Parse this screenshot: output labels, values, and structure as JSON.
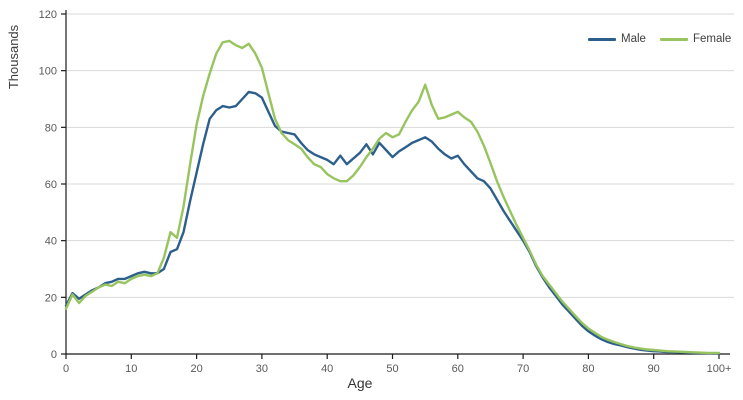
{
  "colors": {
    "grid": "#d9d9d9",
    "axis": "#1a1a1a",
    "tick_text": "#595959",
    "label_text": "#3f3f3f",
    "male_line": "#2d5f8d",
    "female_line": "#97c45e"
  },
  "chart_data": {
    "type": "line",
    "title": "",
    "xlabel": "Age",
    "ylabel": "Thousands",
    "ylim": [
      0,
      120
    ],
    "xlim": [
      0,
      100
    ],
    "grid": "horizontal",
    "legend_position": "top-right",
    "yticks": [
      0,
      20,
      40,
      60,
      80,
      100,
      120
    ],
    "xticks": [
      0,
      10,
      20,
      30,
      40,
      50,
      60,
      70,
      80,
      90,
      100
    ],
    "xtick_labels": [
      "0",
      "10",
      "20",
      "30",
      "40",
      "50",
      "60",
      "70",
      "80",
      "90",
      "100+"
    ],
    "x": [
      0,
      1,
      2,
      3,
      4,
      5,
      6,
      7,
      8,
      9,
      10,
      11,
      12,
      13,
      14,
      15,
      16,
      17,
      18,
      19,
      20,
      21,
      22,
      23,
      24,
      25,
      26,
      27,
      28,
      29,
      30,
      31,
      32,
      33,
      34,
      35,
      36,
      37,
      38,
      39,
      40,
      41,
      42,
      43,
      44,
      45,
      46,
      47,
      48,
      49,
      50,
      51,
      52,
      53,
      54,
      55,
      56,
      57,
      58,
      59,
      60,
      61,
      62,
      63,
      64,
      65,
      66,
      67,
      68,
      69,
      70,
      71,
      72,
      73,
      74,
      75,
      76,
      77,
      78,
      79,
      80,
      81,
      82,
      83,
      84,
      85,
      86,
      87,
      88,
      89,
      90,
      91,
      92,
      93,
      94,
      95,
      96,
      97,
      98,
      99,
      100
    ],
    "series": [
      {
        "name": "Male",
        "color": "#2d5f8d",
        "values": [
          17,
          21.5,
          19.5,
          21,
          22.5,
          23.5,
          25,
          25.5,
          26.5,
          26.5,
          27.5,
          28.5,
          29,
          28.5,
          28.5,
          30,
          36,
          37,
          43,
          54,
          64,
          74,
          83,
          86,
          87.5,
          87,
          87.5,
          90,
          92.5,
          92,
          90.5,
          85.5,
          80.5,
          78.5,
          78,
          77.5,
          74.5,
          72,
          70.5,
          69.5,
          68.5,
          67,
          70,
          67,
          69,
          71,
          74,
          70.5,
          74.5,
          72,
          69.5,
          71.5,
          73,
          74.5,
          75.5,
          76.5,
          75,
          72.5,
          70.5,
          69,
          70,
          67,
          64.5,
          62,
          61,
          58.5,
          54.5,
          50.5,
          47,
          43.5,
          40,
          36,
          31,
          27,
          23.5,
          20.5,
          17.5,
          15,
          12.5,
          10,
          8,
          6.5,
          5.2,
          4.2,
          3.5,
          3,
          2.4,
          1.9,
          1.5,
          1.2,
          1,
          0.9,
          0.7,
          0.7,
          0.6,
          0.5,
          0.4,
          0.3,
          0.3,
          0.2,
          0.2
        ]
      },
      {
        "name": "Female",
        "color": "#97c45e",
        "values": [
          16,
          21,
          18,
          20.5,
          22,
          23.5,
          24.5,
          24,
          25.5,
          25,
          26.5,
          27.5,
          28,
          27.5,
          28.5,
          34,
          43,
          41,
          52,
          67,
          81,
          91,
          99,
          106,
          110,
          110.5,
          109,
          108,
          109.5,
          106,
          101,
          92,
          83,
          78,
          75.5,
          74,
          72.5,
          69.5,
          67,
          66,
          63.5,
          62,
          61,
          61,
          63,
          66,
          69.5,
          72.5,
          76,
          78,
          76.5,
          77.5,
          82,
          86,
          89,
          95,
          88,
          83,
          83.5,
          84.5,
          85.5,
          83.5,
          82,
          78.5,
          73.5,
          67.5,
          61,
          55.5,
          50.5,
          45.5,
          41,
          36.5,
          31.5,
          27.5,
          24.5,
          21.5,
          18.5,
          16,
          13.5,
          11,
          9,
          7.5,
          6,
          5,
          4.2,
          3.5,
          2.8,
          2.3,
          1.9,
          1.6,
          1.4,
          1.2,
          1,
          0.9,
          0.8,
          0.7,
          0.6,
          0.5,
          0.4,
          0.4,
          0.4
        ]
      }
    ]
  }
}
